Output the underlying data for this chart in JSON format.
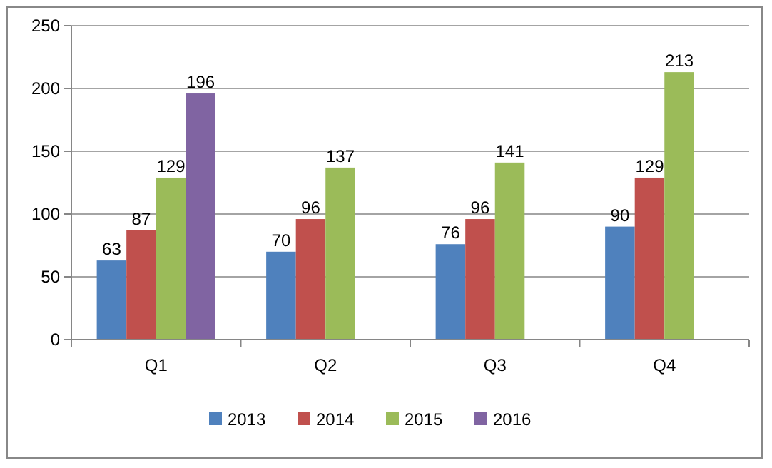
{
  "chart_data": {
    "type": "bar",
    "categories": [
      "Q1",
      "Q2",
      "Q3",
      "Q4"
    ],
    "series": [
      {
        "name": "2013",
        "color": "#4f81bd",
        "values": [
          63,
          70,
          76,
          90
        ]
      },
      {
        "name": "2014",
        "color": "#c0504d",
        "values": [
          87,
          96,
          96,
          129
        ]
      },
      {
        "name": "2015",
        "color": "#9bbb59",
        "values": [
          129,
          137,
          141,
          213
        ]
      },
      {
        "name": "2016",
        "color": "#8064a2",
        "values": [
          196,
          null,
          null,
          null
        ]
      }
    ],
    "ylim": [
      0,
      250
    ],
    "yticks": [
      0,
      50,
      100,
      150,
      200,
      250
    ],
    "grid": "y",
    "legend": "bottom",
    "data_labels": true
  }
}
